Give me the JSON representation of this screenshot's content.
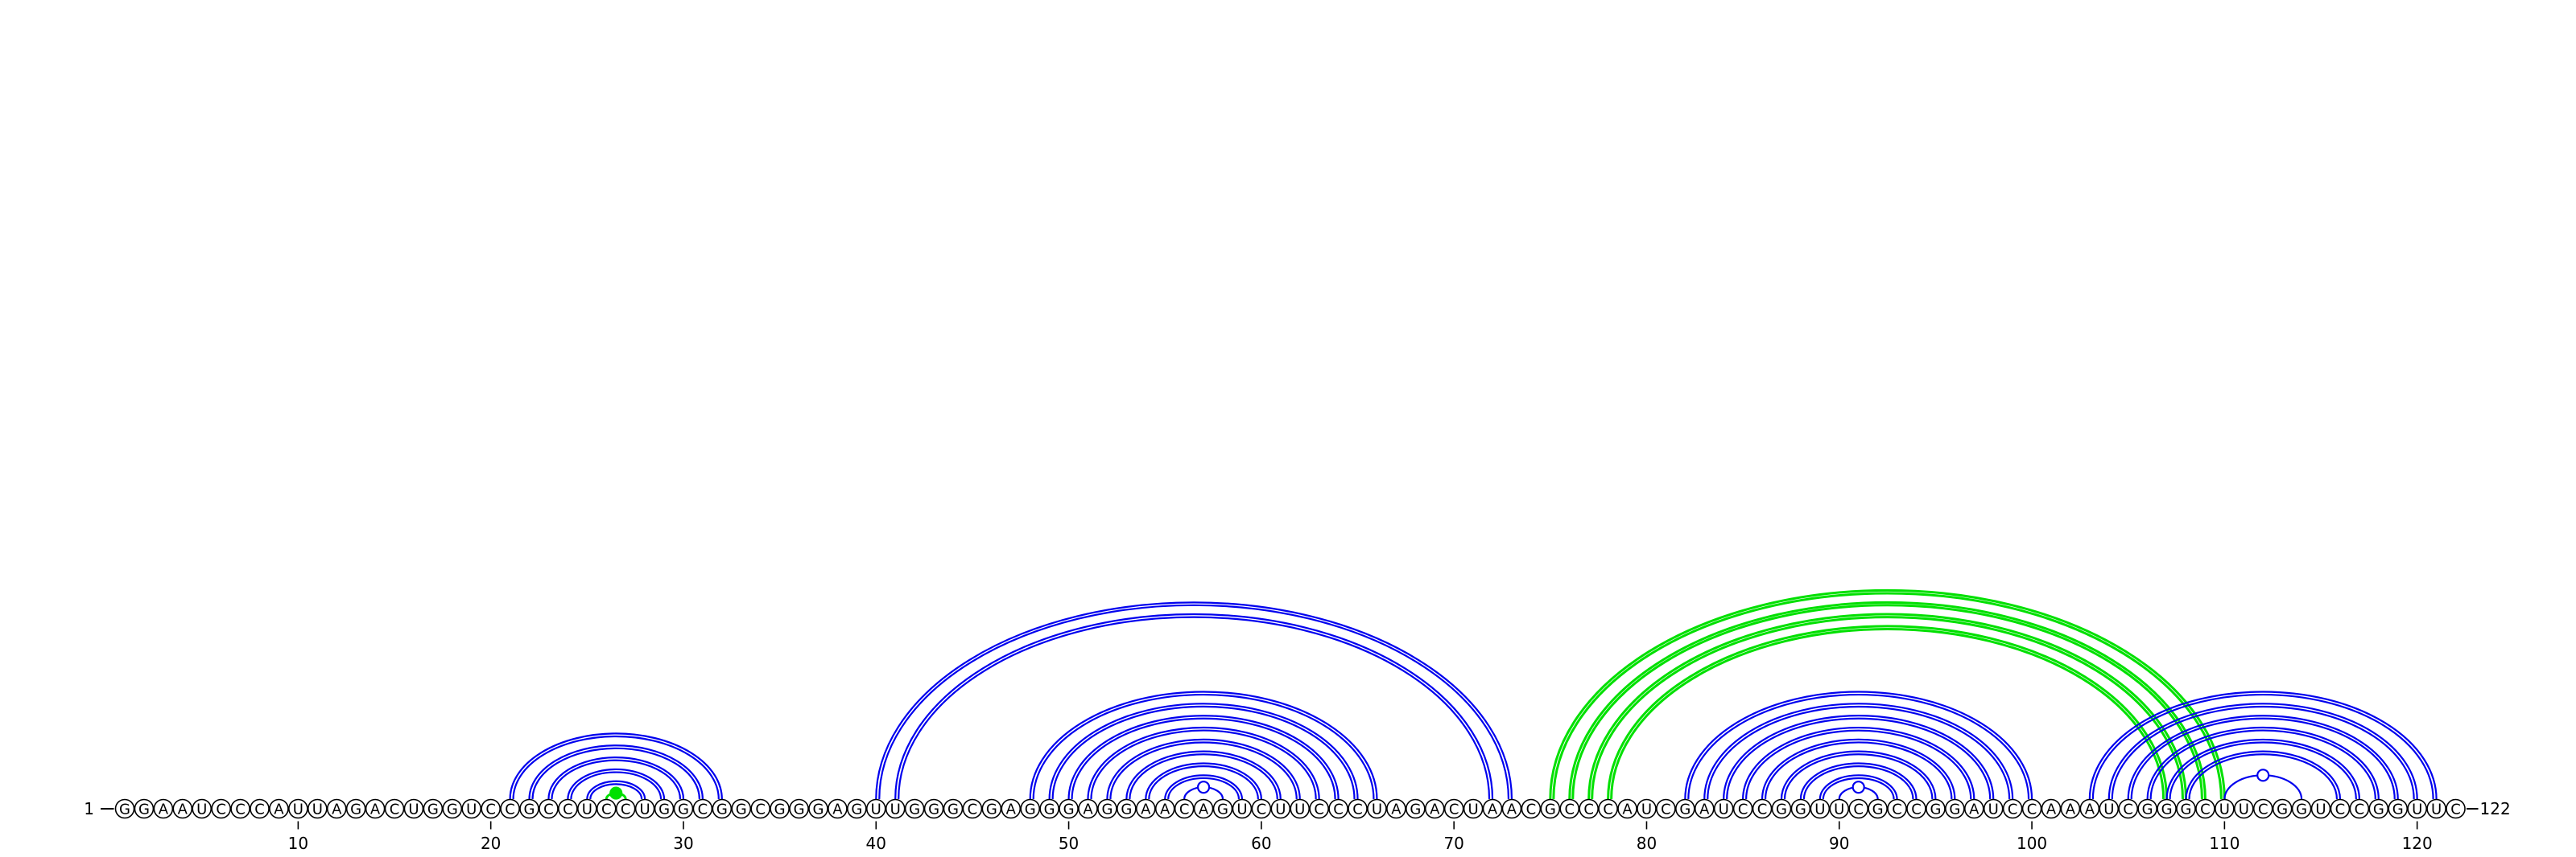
{
  "sequence": "GGAAUCCCAUUAGACUGGUCCGCCUCCUGGCGGCGGGAGUUGGGCGAGGGAGGAACAGUCUUCCCUAGACUAACGCCCAUCGAUCCGGUUCGCCGGAUCCAAAUCGGGCUUCGGUCCGGUUC",
  "start_label": "1",
  "end_label": "122",
  "ticks": [
    10,
    20,
    30,
    40,
    50,
    60,
    70,
    80,
    90,
    100,
    110,
    120
  ],
  "colors": {
    "pair": "#0000ee",
    "highlight": "#00e000",
    "nucleotide_fill": "#ffffff",
    "nucleotide_stroke": "#000000",
    "text": "#000000"
  },
  "arc_groups": [
    {
      "name": "helix-21-32",
      "color": "pair",
      "style": "double",
      "pairs": [
        [
          21,
          32
        ],
        [
          22,
          31
        ],
        [
          23,
          30
        ],
        [
          24,
          29
        ],
        [
          25,
          28
        ]
      ]
    },
    {
      "name": "hairpin-26-27",
      "color": "highlight",
      "style": "single",
      "pairs": [
        [
          26,
          27
        ]
      ],
      "marker": "filled"
    },
    {
      "name": "helix-40-73",
      "color": "pair",
      "style": "double",
      "pairs": [
        [
          40,
          73
        ],
        [
          41,
          72
        ]
      ]
    },
    {
      "name": "helix-48-66",
      "color": "pair",
      "style": "double",
      "pairs": [
        [
          48,
          66
        ],
        [
          49,
          65
        ],
        [
          50,
          64
        ],
        [
          51,
          63
        ],
        [
          52,
          62
        ],
        [
          53,
          61
        ],
        [
          54,
          60
        ],
        [
          55,
          59
        ]
      ]
    },
    {
      "name": "hairpin-56-58",
      "color": "pair",
      "style": "single",
      "pairs": [
        [
          56,
          58
        ]
      ],
      "marker": "open"
    },
    {
      "name": "pseudoknot-75-110",
      "color": "highlight",
      "style": "double",
      "pairs": [
        [
          75,
          110
        ],
        [
          76,
          109
        ],
        [
          77,
          108
        ],
        [
          78,
          107
        ]
      ]
    },
    {
      "name": "helix-82-100",
      "color": "pair",
      "style": "double",
      "pairs": [
        [
          82,
          100
        ],
        [
          83,
          99
        ],
        [
          84,
          98
        ],
        [
          85,
          97
        ],
        [
          86,
          96
        ],
        [
          87,
          95
        ],
        [
          88,
          94
        ],
        [
          89,
          93
        ]
      ]
    },
    {
      "name": "hairpin-90-92",
      "color": "pair",
      "style": "single",
      "pairs": [
        [
          90,
          92
        ]
      ],
      "marker": "open"
    },
    {
      "name": "helix-103-121",
      "color": "pair",
      "style": "double",
      "pairs": [
        [
          103,
          121
        ],
        [
          104,
          120
        ],
        [
          105,
          119
        ],
        [
          106,
          118
        ],
        [
          107,
          117
        ],
        [
          108,
          116
        ]
      ]
    },
    {
      "name": "hairpin-110-114",
      "color": "pair",
      "style": "single",
      "pairs": [
        [
          110,
          114
        ]
      ],
      "marker": "open"
    }
  ],
  "markers": [
    {
      "position": 26.5,
      "style": "filled",
      "color": "highlight"
    },
    {
      "position": 57,
      "style": "open",
      "color": "pair"
    },
    {
      "position": 91,
      "style": "open",
      "color": "pair"
    },
    {
      "position": 112,
      "style": "open",
      "color": "pair"
    }
  ]
}
